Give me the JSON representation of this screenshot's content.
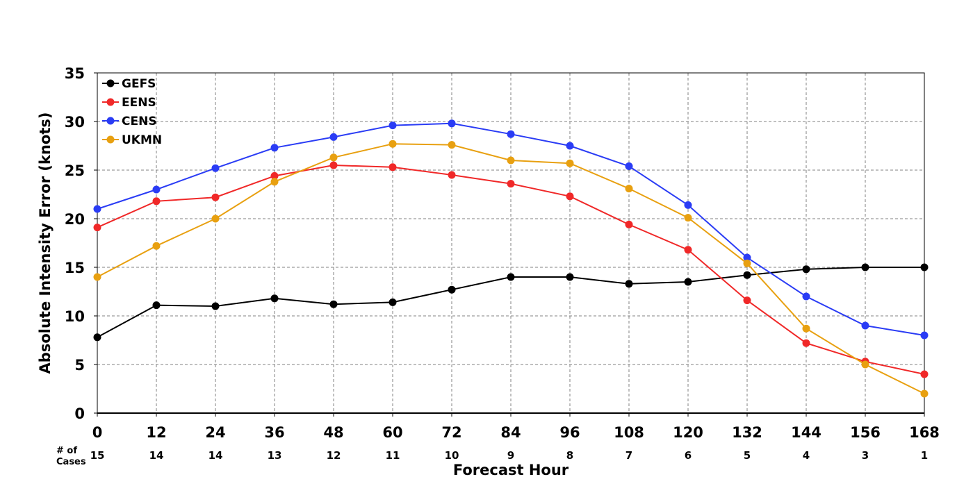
{
  "chart_data": {
    "type": "line",
    "title": "",
    "xlabel": "Forecast Hour",
    "ylabel": "Absolute Intensity Error (knots)",
    "x": [
      0,
      12,
      24,
      36,
      48,
      60,
      72,
      84,
      96,
      108,
      120,
      132,
      144,
      156,
      168
    ],
    "xlim": [
      0,
      168
    ],
    "ylim": [
      0,
      35
    ],
    "yticks": [
      0,
      5,
      10,
      15,
      20,
      25,
      30,
      35
    ],
    "grid": true,
    "legend_position": "top-left",
    "cases_label": "# of\nCases",
    "cases": [
      15,
      14,
      14,
      13,
      12,
      11,
      10,
      9,
      8,
      7,
      6,
      5,
      4,
      3,
      1
    ],
    "series": [
      {
        "name": "GEFS",
        "color": "#000000",
        "values": [
          7.8,
          11.1,
          11.0,
          11.8,
          11.2,
          11.4,
          12.7,
          14.0,
          14.0,
          13.3,
          13.5,
          14.2,
          14.8,
          15.0,
          15.0
        ]
      },
      {
        "name": "EENS",
        "color": "#f02828",
        "values": [
          19.1,
          21.8,
          22.2,
          24.4,
          25.5,
          25.3,
          24.5,
          23.6,
          22.3,
          19.4,
          16.8,
          11.6,
          7.2,
          5.3,
          4.0
        ]
      },
      {
        "name": "CENS",
        "color": "#2a3cf5",
        "values": [
          21.0,
          23.0,
          25.2,
          27.3,
          28.4,
          29.6,
          29.8,
          28.7,
          27.5,
          25.4,
          21.4,
          16.0,
          12.0,
          9.0,
          8.0
        ]
      },
      {
        "name": "UKMN",
        "color": "#e8a010",
        "values": [
          14.0,
          17.2,
          20.0,
          23.8,
          26.3,
          27.7,
          27.6,
          26.0,
          25.7,
          23.1,
          20.1,
          15.4,
          8.7,
          5.0,
          2.0
        ]
      }
    ]
  }
}
